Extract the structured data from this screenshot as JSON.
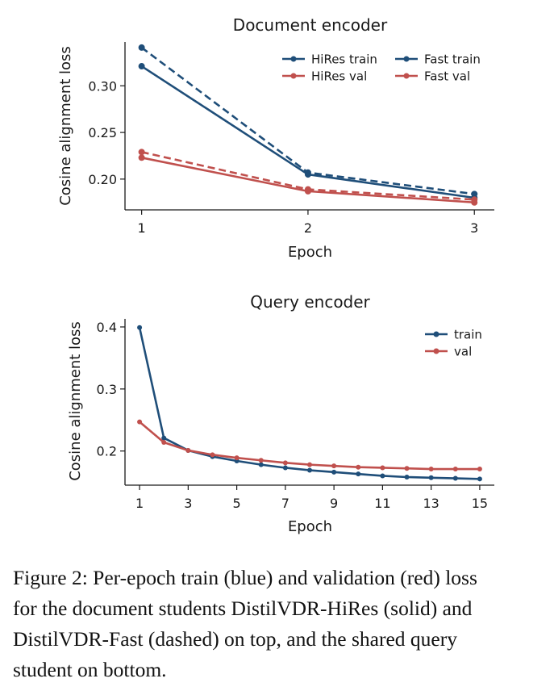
{
  "chart_data": [
    {
      "type": "line",
      "title": "Document encoder",
      "xlabel": "Epoch",
      "ylabel": "Cosine alignment loss",
      "x": [
        1,
        2,
        3
      ],
      "xlim": [
        0.9,
        3.12
      ],
      "ylim": [
        0.167,
        0.347
      ],
      "xticks": [
        1,
        2,
        3
      ],
      "yticks": [
        0.2,
        0.25,
        0.3
      ],
      "ytick_labels": [
        "0.20",
        "0.25",
        "0.30"
      ],
      "grid": false,
      "legend": "top-right",
      "series": [
        {
          "name": "HiRes train",
          "values": [
            0.321,
            0.205,
            0.18
          ],
          "color": "#1f4e79",
          "style": "solid"
        },
        {
          "name": "HiRes val",
          "values": [
            0.223,
            0.187,
            0.175
          ],
          "color": "#c0504d",
          "style": "solid"
        },
        {
          "name": "Fast train",
          "values": [
            0.341,
            0.207,
            0.184
          ],
          "color": "#1f4e79",
          "style": "dashed"
        },
        {
          "name": "Fast val",
          "values": [
            0.229,
            0.189,
            0.178
          ],
          "color": "#c0504d",
          "style": "dashed"
        }
      ]
    },
    {
      "type": "line",
      "title": "Query encoder",
      "xlabel": "Epoch",
      "ylabel": "Cosine alignment loss",
      "x": [
        1,
        2,
        3,
        4,
        5,
        6,
        7,
        8,
        9,
        10,
        11,
        12,
        13,
        14,
        15
      ],
      "xlim": [
        0.4,
        15.6
      ],
      "ylim": [
        0.145,
        0.413
      ],
      "xticks": [
        1,
        3,
        5,
        7,
        9,
        11,
        13,
        15
      ],
      "yticks": [
        0.2,
        0.3,
        0.4
      ],
      "ytick_labels": [
        "0.2",
        "0.3",
        "0.4"
      ],
      "grid": false,
      "legend": "top-right",
      "series": [
        {
          "name": "train",
          "values": [
            0.399,
            0.221,
            0.201,
            0.191,
            0.184,
            0.178,
            0.173,
            0.169,
            0.166,
            0.163,
            0.16,
            0.158,
            0.157,
            0.156,
            0.155
          ],
          "color": "#1f4e79",
          "style": "solid"
        },
        {
          "name": "val",
          "values": [
            0.247,
            0.214,
            0.201,
            0.194,
            0.189,
            0.185,
            0.181,
            0.178,
            0.176,
            0.174,
            0.173,
            0.172,
            0.171,
            0.171,
            0.171
          ],
          "color": "#c0504d",
          "style": "solid"
        }
      ]
    }
  ],
  "caption": {
    "lines": [
      "Figure 2: Per-epoch train (blue) and validation (red) loss",
      "for the document students DistilVDR-HiRes (solid) and",
      "DistilVDR-Fast (dashed) on top, and the shared query",
      "student on bottom."
    ]
  }
}
